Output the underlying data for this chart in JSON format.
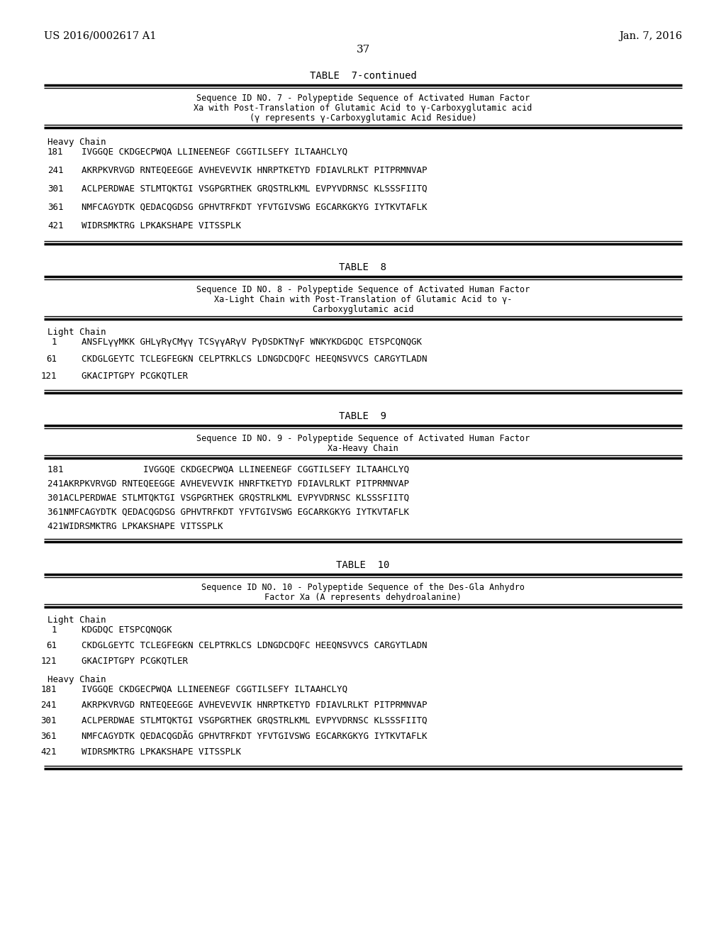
{
  "bg_color": "#ffffff",
  "header_left": "US 2016/0002617 A1",
  "header_right": "Jan. 7, 2016",
  "page_num": "37",
  "table7_title": "TABLE  7-continued",
  "table7_desc": [
    "Sequence ID NO. 7 - Polypeptide Sequence of Activated Human Factor",
    "Xa with Post-Translation of Glutamic Acid to γ-Carboxyglutamic acid",
    "(γ represents γ-Carboxyglutamic Acid Residue)"
  ],
  "table7_chain": "Heavy Chain",
  "table7_rows": [
    [
      "181",
      "                         IVGGQE CKDGECPWQA LLINEENEGF CGGTILSEFY ILTAAHCLYQ"
    ],
    [
      "241",
      "         AKRPKVRVGD RNTEQEEGGE AVHEVEVVIK HNRPTKETYD FDIAVLRLKT PITPRMNVAP"
    ],
    [
      "301",
      "         ACLPERDWAE STLMTQKTGI VSGPGRTHEK GRQSTRLKML EVPYVDRNSC KLSSSFIITQ"
    ],
    [
      "361",
      "         NMFCAGYDTK QEDACQGDSG GPHVTRFKDT YFVTGIVSWG EGCARKGKYG IYTKVTAFLK"
    ],
    [
      "421",
      "         WIDRSMKTRG LPKAKSHAPE VITSSPLK"
    ]
  ],
  "table8_title": "TABLE  8",
  "table8_desc": [
    "Sequence ID NO. 8 - Polypeptide Sequence of Activated Human Factor",
    "Xa-Light Chain with Post-Translation of Glutamic Acid to γ-",
    "Carboxyglutamic acid"
  ],
  "table8_chain": "Light Chain",
  "table8_rows": [
    [
      "1",
      "        ANSFLγγMKK GHLγRγCMγγ TCSγγARγV PγDSDKTNγF WNKYKDGDQC ETSPCQNQGK"
    ],
    [
      "61",
      "        CKDGLGEYTC TCLEGFEGKN CELPTRKLCS LDNGDCDQFC HEEQNSVVCS CARGYTLADN"
    ],
    [
      "121",
      "        GKACIPTGPY PCGKQTLER"
    ]
  ],
  "table9_title": "TABLE  9",
  "table9_desc": [
    "Sequence ID NO. 9 - Polypeptide Sequence of Activated Human Factor",
    "Xa-Heavy Chain"
  ],
  "table9_rows": [
    "181               IVGGQE CKDGECPWQA LLINEENEGF CGGTILSEFY ILTAAHCLYQ",
    "241AKRPKVRVGD RNTEQEEGGE AVHEVEVVIK HNRFTKETYD FDIAVLRLKT PITPRMNVAP",
    "301ACLPERDWAE STLMTQKTGI VSGPGRTHEK GRQSTRLKML EVPYVDRNSC KLSSSFIITQ",
    "361NMFCAGYDTK QEDACQGDSG GPHVTRFKDT YFVTGIVSWG EGCARKGKYG IYTKVTAFLK",
    "421WIDRSMKTRG LPKAKSHAPE VITSSPLK"
  ],
  "table10_title": "TABLE  10",
  "table10_desc": [
    "Sequence ID NO. 10 - Polypeptide Sequence of the Des-Gla Anhydro",
    "Factor Xa (A represents dehydroalanine)"
  ],
  "table10_lc_chain": "Light Chain",
  "table10_lc_rows": [
    [
      "1",
      "                                                    KDGDQC ETSPCQNQGK"
    ],
    [
      "61",
      "        CKDGLGEYTC TCLEGFEGKN CELPTRKLCS LDNGDCDQFC HEEQNSVVCS CARGYTLADN"
    ],
    [
      "121",
      "        GKACIPTGPY PCGKQTLER"
    ]
  ],
  "table10_hc_chain": "Heavy Chain",
  "table10_hc_rows": [
    [
      "181",
      "                         IVGGQE CKDGECPWQA LLINEENEGF CGGTILSEFY ILTAAHCLYQ"
    ],
    [
      "241",
      "         AKRPKVRVGD RNTEQEEGGE AVHEVEVVIK HNRPTKETYD FDIAVLRLKT PITPRMNVAP"
    ],
    [
      "301",
      "         ACLPERDWAE STLMTQKTGI VSGPGRTHEK GRQSTRLKML EVPYVDRNSC KLSSSFIITQ"
    ],
    [
      "361",
      "         NMFCAGYDTK QEDACQGDÃG GPHVTRFKDT YFVTGIVSWG EGCARKGKYG IYTKVTAFLK"
    ],
    [
      "421",
      "         WIDRSMKTRG LPKAKSHAPE VITSSPLK"
    ]
  ]
}
